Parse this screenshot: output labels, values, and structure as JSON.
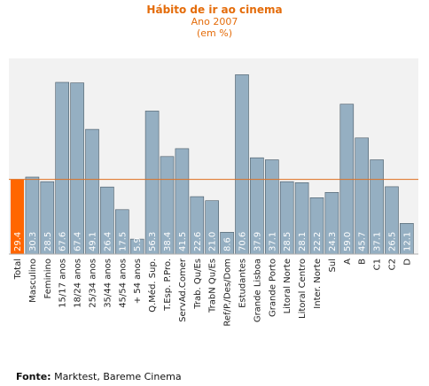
{
  "chart_data": {
    "type": "bar",
    "title": "Hábito de ir ao cinema",
    "subtitle": "Ano 2007",
    "unit_note": "(em %)",
    "categories": [
      "Total",
      "Masculino",
      "Feminino",
      "15/17 anos",
      "18/24 anos",
      "25/34 anos",
      "35/44 anos",
      "45/54 anos",
      "+ 54  anos",
      "Q.Méd. Sup.",
      "T.Esp. P.Pro.",
      "ServAd.Comer",
      "Trab. Qu/Es",
      "TrabN Qu/Es",
      "Ref/P./Des/Dom",
      "Estudantes",
      "Grande Lisboa",
      "Grande Porto",
      "Litoral Norte",
      "Litoral Centro",
      "Inter. Norte",
      "Sul",
      "A",
      "B",
      "C1",
      "C2",
      "D"
    ],
    "values": [
      29.4,
      30.3,
      28.5,
      67.6,
      67.4,
      49.1,
      26.4,
      17.5,
      5.9,
      56.3,
      38.4,
      41.5,
      22.6,
      21.0,
      8.6,
      70.6,
      37.9,
      37.1,
      28.5,
      28.1,
      22.2,
      24.3,
      59.0,
      45.7,
      37.1,
      26.5,
      12.1
    ],
    "value_labels": [
      "29.4",
      "30.3",
      "28.5",
      "67.6",
      "67.4",
      "49.1",
      "26.4",
      "17.5",
      "5.9",
      "56.3",
      "38.4",
      "41.5",
      "22.6",
      "21.0",
      "8.6",
      "70.6",
      "37.9",
      "37.1",
      "28.5",
      "28.1",
      "22.2",
      "24.3",
      "59.0",
      "45.7",
      "37.1",
      "26.5",
      "12.1"
    ],
    "reference_value": 29.4,
    "ylim": [
      0,
      77
    ],
    "grid": false,
    "colors": {
      "highlight_bar": "#ff6600",
      "bar": "#95afc2",
      "bar_edge": "#4a5a66",
      "reference_line": "#e07020",
      "plot_bg": "#f2f2f2",
      "title": "#e46c0a"
    }
  },
  "footer": {
    "source_label": "Fonte:",
    "source_text": " Marktest, Bareme Cinema"
  }
}
